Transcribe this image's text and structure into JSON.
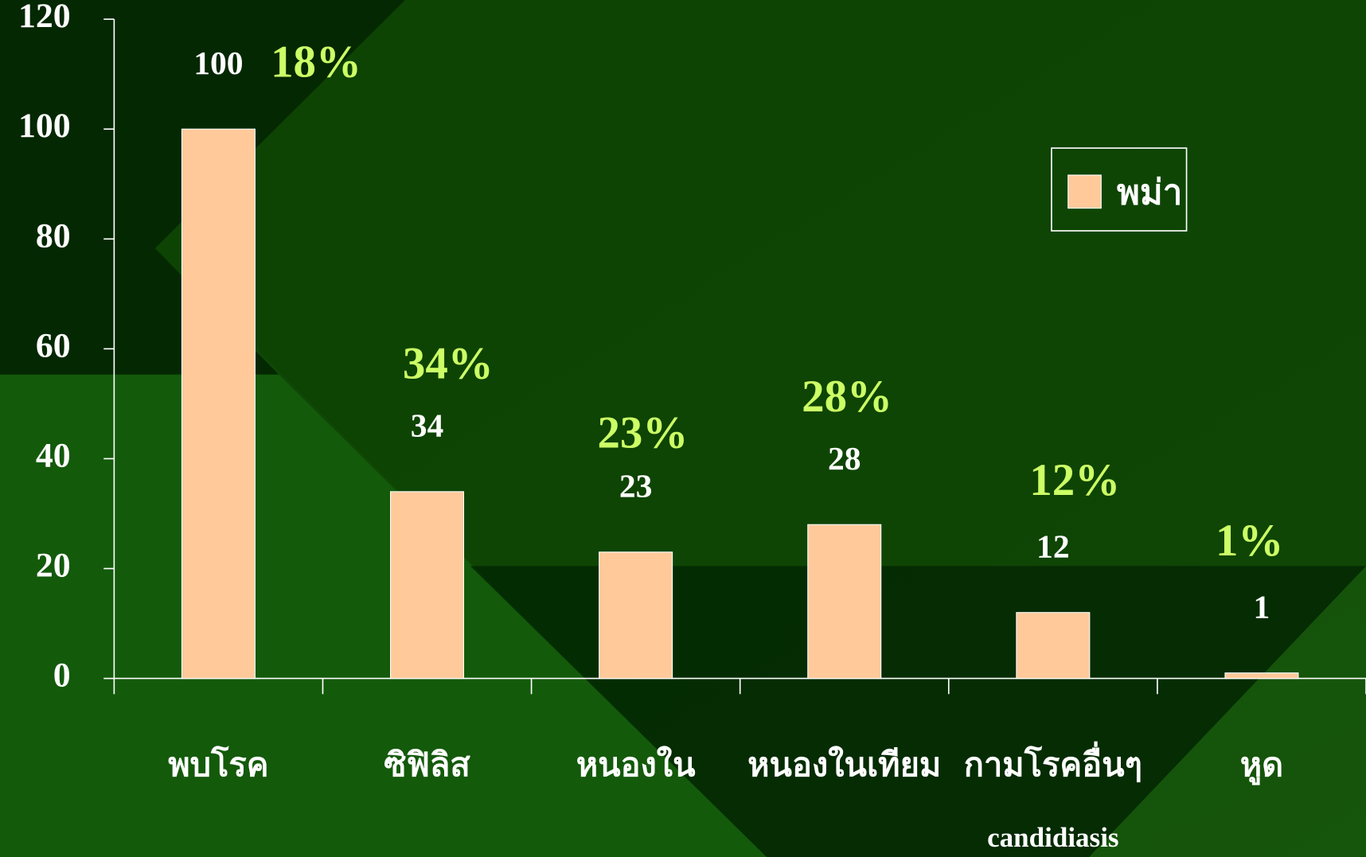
{
  "chart_data": {
    "type": "bar",
    "categories": [
      "พบโรค",
      "ซิฟิลิส",
      "หนองใน",
      "หนองในเทียม",
      "กามโรคอื่นๆ",
      "หูด"
    ],
    "note": "candidiasis",
    "series": [
      {
        "name": "พม่า",
        "color": "#ffc99a",
        "values": [
          100,
          34,
          23,
          28,
          12,
          1
        ]
      }
    ],
    "annotations": [
      "18%",
      "34%",
      "23%",
      "28%",
      "12%",
      "1%"
    ],
    "ylim": [
      0,
      120
    ],
    "yticks": [
      0,
      20,
      40,
      60,
      80,
      100,
      120
    ],
    "legend": "upper right"
  }
}
